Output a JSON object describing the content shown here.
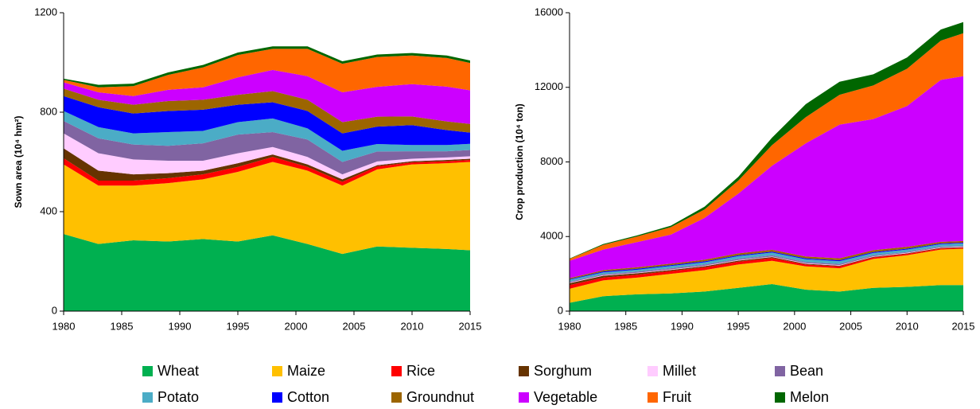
{
  "legend": [
    {
      "name": "Wheat",
      "color": "#00b050"
    },
    {
      "name": "Maize",
      "color": "#ffc000"
    },
    {
      "name": "Rice",
      "color": "#ff0000"
    },
    {
      "name": "Sorghum",
      "color": "#663300"
    },
    {
      "name": "Millet",
      "color": "#ffccff"
    },
    {
      "name": "Bean",
      "color": "#8064a2"
    },
    {
      "name": "Potato",
      "color": "#4bacc6"
    },
    {
      "name": "Cotton",
      "color": "#0000ff"
    },
    {
      "name": "Groundnut",
      "color": "#9c6500"
    },
    {
      "name": "Vegetable",
      "color": "#cc00ff"
    },
    {
      "name": "Fruit",
      "color": "#ff6600"
    },
    {
      "name": "Melon",
      "color": "#006600"
    }
  ],
  "chart_data": [
    {
      "type": "area",
      "stacked": true,
      "ylabel": "Sown area (10⁴ hm²)",
      "x": [
        1980,
        1983,
        1986,
        1989,
        1992,
        1995,
        1998,
        2001,
        2004,
        2007,
        2010,
        2013,
        2015
      ],
      "xlim": [
        1980,
        2015
      ],
      "xticks": [
        1980,
        1985,
        1990,
        1995,
        2000,
        2005,
        2010,
        2015
      ],
      "ylim": [
        0,
        1200
      ],
      "yticks": [
        0,
        400,
        800,
        1200
      ],
      "series": [
        {
          "values": [
            310,
            270,
            285,
            280,
            290,
            280,
            305,
            270,
            230,
            260,
            255,
            250,
            245
          ]
        },
        {
          "values": [
            280,
            235,
            220,
            235,
            240,
            280,
            295,
            295,
            275,
            310,
            335,
            345,
            355
          ]
        },
        {
          "values": [
            25,
            20,
            20,
            20,
            20,
            20,
            20,
            15,
            15,
            12,
            8,
            8,
            8
          ]
        },
        {
          "values": [
            40,
            40,
            25,
            20,
            15,
            15,
            10,
            10,
            10,
            5,
            5,
            5,
            5
          ]
        },
        {
          "values": [
            60,
            70,
            60,
            50,
            40,
            40,
            30,
            30,
            20,
            15,
            10,
            10,
            10
          ]
        },
        {
          "values": [
            50,
            60,
            60,
            60,
            70,
            75,
            60,
            70,
            50,
            40,
            30,
            25,
            25
          ]
        },
        {
          "values": [
            40,
            45,
            45,
            55,
            50,
            50,
            55,
            45,
            45,
            30,
            25,
            25,
            25
          ]
        },
        {
          "values": [
            60,
            80,
            80,
            85,
            85,
            70,
            65,
            70,
            70,
            70,
            80,
            60,
            45
          ]
        },
        {
          "values": [
            30,
            30,
            35,
            40,
            40,
            40,
            45,
            45,
            45,
            40,
            35,
            35,
            35
          ]
        },
        {
          "values": [
            25,
            30,
            35,
            45,
            50,
            70,
            85,
            95,
            120,
            120,
            130,
            140,
            135
          ]
        },
        {
          "values": [
            10,
            20,
            40,
            60,
            80,
            90,
            85,
            110,
            115,
            120,
            115,
            115,
            110
          ]
        },
        {
          "values": [
            5,
            10,
            10,
            10,
            10,
            10,
            10,
            10,
            10,
            10,
            10,
            10,
            10
          ]
        }
      ]
    },
    {
      "type": "area",
      "stacked": true,
      "ylabel": "Crop production (10⁴ ton)",
      "x": [
        1980,
        1983,
        1986,
        1989,
        1992,
        1995,
        1998,
        2001,
        2004,
        2007,
        2010,
        2013,
        2015
      ],
      "xlim": [
        1980,
        2015
      ],
      "xticks": [
        1980,
        1985,
        1990,
        1995,
        2000,
        2005,
        2010,
        2015
      ],
      "ylim": [
        0,
        16000
      ],
      "yticks": [
        0,
        4000,
        8000,
        12000,
        16000
      ],
      "series": [
        {
          "values": [
            450,
            800,
            900,
            950,
            1050,
            1250,
            1450,
            1150,
            1050,
            1250,
            1300,
            1400,
            1400
          ]
        },
        {
          "values": [
            750,
            850,
            900,
            1050,
            1150,
            1250,
            1250,
            1250,
            1250,
            1550,
            1700,
            1900,
            1950
          ]
        },
        {
          "values": [
            200,
            150,
            150,
            150,
            150,
            150,
            150,
            100,
            100,
            80,
            70,
            60,
            50
          ]
        },
        {
          "values": [
            100,
            100,
            80,
            60,
            60,
            60,
            50,
            40,
            40,
            30,
            30,
            30,
            30
          ]
        },
        {
          "values": [
            30,
            30,
            30,
            30,
            30,
            30,
            30,
            30,
            30,
            30,
            30,
            30,
            30
          ]
        },
        {
          "values": [
            50,
            50,
            60,
            60,
            60,
            60,
            60,
            60,
            60,
            50,
            40,
            40,
            40
          ]
        },
        {
          "values": [
            100,
            100,
            100,
            120,
            120,
            150,
            150,
            150,
            150,
            130,
            130,
            130,
            130
          ]
        },
        {
          "values": [
            30,
            50,
            50,
            50,
            50,
            50,
            50,
            50,
            50,
            50,
            50,
            40,
            40
          ]
        },
        {
          "values": [
            60,
            70,
            80,
            80,
            90,
            100,
            100,
            100,
            100,
            100,
            100,
            90,
            90
          ]
        },
        {
          "values": [
            930,
            1100,
            1350,
            1550,
            2240,
            3200,
            4510,
            6070,
            7170,
            7030,
            7550,
            8680,
            8840
          ]
        },
        {
          "values": [
            100,
            250,
            300,
            400,
            450,
            700,
            1100,
            1400,
            1600,
            1800,
            2000,
            2100,
            2300
          ]
        },
        {
          "values": [
            20,
            50,
            60,
            80,
            150,
            200,
            400,
            700,
            700,
            600,
            600,
            600,
            600
          ]
        }
      ]
    }
  ]
}
